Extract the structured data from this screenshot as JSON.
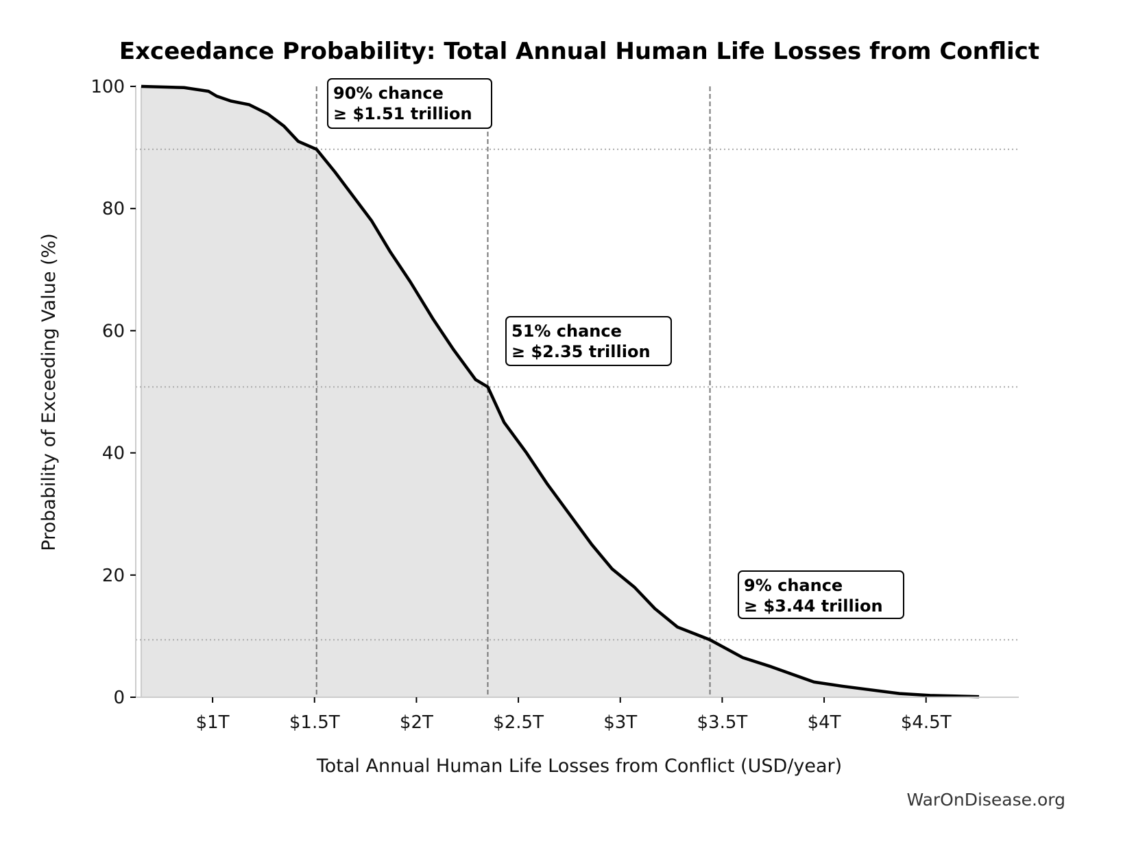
{
  "chart_data": {
    "type": "area",
    "title": "Exceedance Probability: Total Annual Human Life Losses from Conflict",
    "xlabel": "Total Annual Human Life Losses from Conflict (USD/year)",
    "ylabel": "Probability of Exceeding Value (%)",
    "xlim": [
      0.623,
      4.955
    ],
    "ylim": [
      0,
      100
    ],
    "x_unit": "trillion USD",
    "x_ticks": [
      {
        "value": 1,
        "label": "$1T"
      },
      {
        "value": 1.5,
        "label": "$1.5T"
      },
      {
        "value": 2,
        "label": "$2T"
      },
      {
        "value": 2.5,
        "label": "$2.5T"
      },
      {
        "value": 3,
        "label": "$3T"
      },
      {
        "value": 3.5,
        "label": "$3.5T"
      },
      {
        "value": 4,
        "label": "$4T"
      },
      {
        "value": 4.5,
        "label": "$4.5T"
      }
    ],
    "y_ticks": [
      0,
      20,
      40,
      60,
      80,
      100
    ],
    "grid": false,
    "fill_color": "#e5e5e5",
    "line_color": "#000000",
    "x": [
      0.65,
      0.86,
      0.98,
      1.02,
      1.09,
      1.18,
      1.27,
      1.35,
      1.42,
      1.51,
      1.6,
      1.69,
      1.78,
      1.87,
      1.97,
      2.08,
      2.18,
      2.29,
      2.35,
      2.43,
      2.54,
      2.64,
      2.75,
      2.86,
      2.96,
      3.07,
      3.17,
      3.28,
      3.44,
      3.6,
      3.74,
      3.84,
      3.95,
      4.09,
      4.23,
      4.37,
      4.52,
      4.76
    ],
    "y": [
      100,
      99.8,
      99.2,
      98.4,
      97.6,
      97,
      95.5,
      93.5,
      91,
      89.7,
      86,
      82,
      78,
      73,
      68,
      62,
      57,
      52,
      50.8,
      45,
      40,
      35,
      30,
      25,
      21,
      18,
      14.5,
      11.5,
      9.4,
      6.5,
      5,
      3.8,
      2.5,
      1.8,
      1.2,
      0.6,
      0.3,
      0.1
    ],
    "annotations": [
      {
        "x": 1.51,
        "y": 89.7,
        "line1": "90% chance",
        "line2": "≥ $1.51 trillion"
      },
      {
        "x": 2.35,
        "y": 50.8,
        "line1": "51% chance",
        "line2": "≥ $2.35 trillion"
      },
      {
        "x": 3.44,
        "y": 9.4,
        "line1": "9% chance",
        "line2": "≥ $3.44 trillion"
      }
    ]
  },
  "watermark": "WarOnDisease.org"
}
